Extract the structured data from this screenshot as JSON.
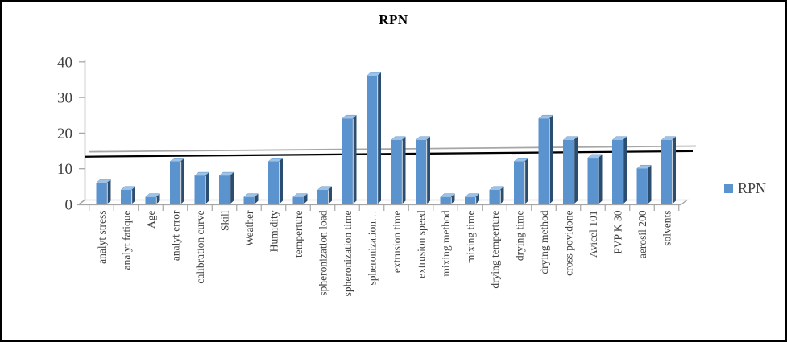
{
  "window": {
    "background": "#ffffff",
    "border_color": "#000000"
  },
  "chart_data": {
    "type": "bar",
    "style": "3d-clustered",
    "title": "RPN",
    "legend": {
      "label": "RPN",
      "position": "right"
    },
    "categories": [
      "analyt stress",
      "analyt fatique",
      "Age",
      "analyt error",
      "calibration curve",
      "Skill",
      "Weather",
      "Humidity",
      "temperture",
      "spheronization load",
      "spheronization time",
      "spheronization…",
      "extrusion time",
      "extrusion speed",
      "mixing method",
      "mixing time",
      "drying temperture",
      "drying time",
      "drying method",
      "cross povidone",
      "Avicel 101",
      "PVP K 30",
      "aerosil 200",
      "solvents"
    ],
    "values": [
      6,
      4,
      2,
      12,
      8,
      8,
      2,
      12,
      2,
      4,
      24,
      36,
      18,
      18,
      2,
      2,
      4,
      12,
      24,
      18,
      13,
      18,
      10,
      18
    ],
    "xlabel": "",
    "ylabel": "",
    "ylim": [
      0,
      40
    ],
    "yticks": [
      0,
      10,
      20,
      30,
      40
    ],
    "grid": false,
    "threshold_line": {
      "color": "#000000",
      "approx_start_value": 16,
      "approx_end_value": 17.5,
      "note": "horizontal cutoff line crossing the plot behind the bars"
    },
    "colors": {
      "bar_front": "#5b93cf",
      "bar_top": "#9dc2e5",
      "bar_side": "#2b4d70",
      "axis": "#a6a6a6",
      "tick_text": "#404040",
      "floor_edge": "#a6a6a6",
      "line_depth": "#a6a6a6"
    }
  }
}
